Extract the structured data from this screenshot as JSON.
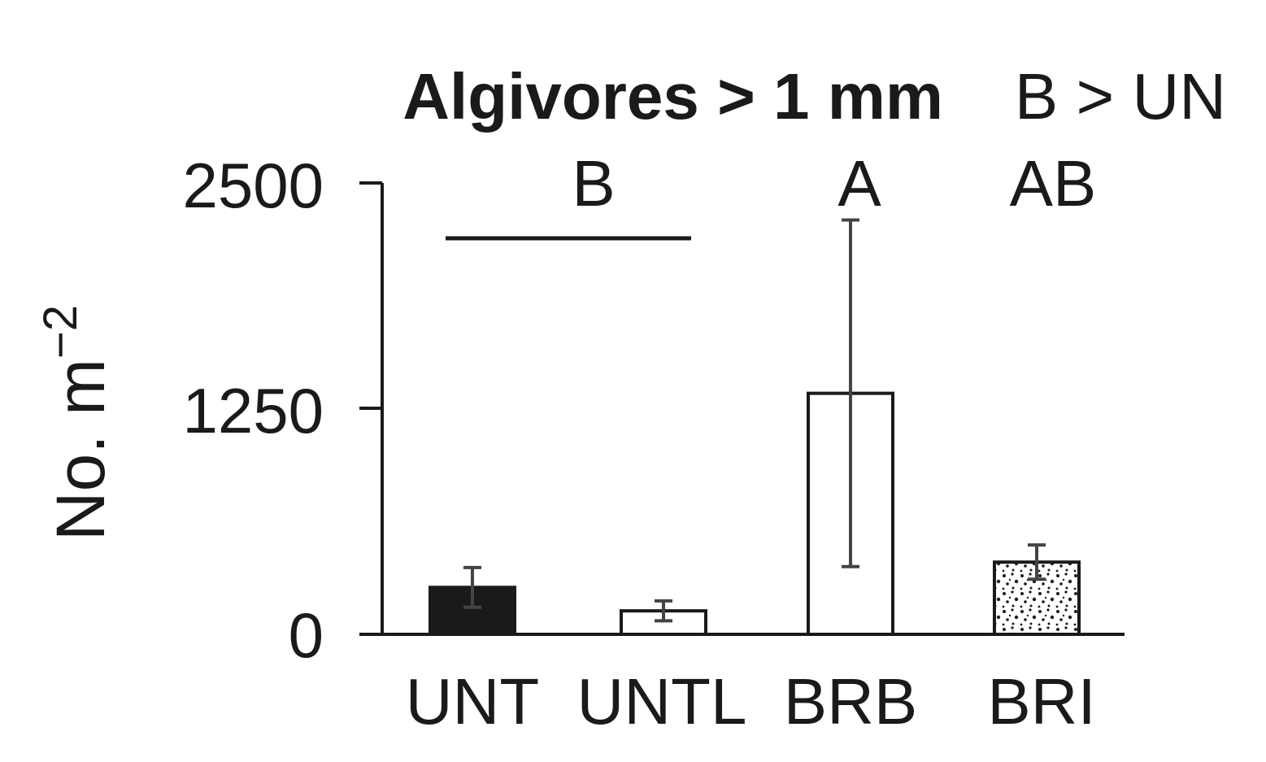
{
  "chart_data": {
    "type": "bar",
    "title": "Algivores > 1 mm",
    "comparison": "B > UN",
    "xlabel": "",
    "ylabel": "No. m",
    "ylabel_superscript": "−2",
    "ylim": [
      0,
      2500
    ],
    "yticks": [
      "0",
      "1250",
      "2500"
    ],
    "categories": [
      "UNT",
      "UNTL",
      "BRB",
      "BRI"
    ],
    "values": [
      260,
      130,
      1335,
      400
    ],
    "errors": [
      110,
      55,
      960,
      95
    ],
    "fills": [
      "solid-black",
      "white",
      "white",
      "stippled"
    ],
    "group_letters": [
      {
        "label": "B",
        "spans": [
          "UNT",
          "UNTL"
        ]
      },
      {
        "label": "A",
        "spans": [
          "BRB"
        ]
      },
      {
        "label": "AB",
        "spans": [
          "BRI"
        ]
      }
    ]
  },
  "colors": {
    "ink": "#1a1a1a",
    "error_bar": "#444444",
    "background": "#ffffff"
  }
}
